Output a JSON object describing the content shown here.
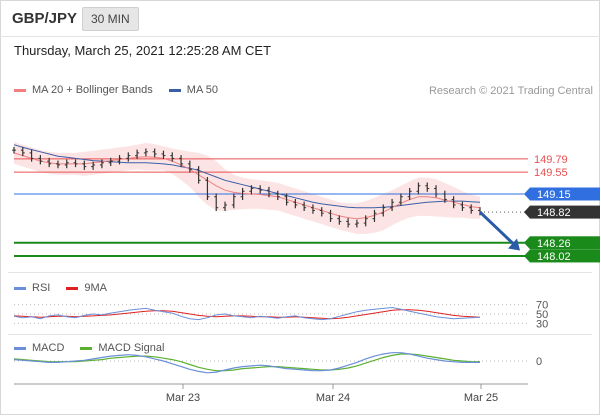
{
  "header": {
    "pair": "GBP/JPY",
    "timeframe": "30 MIN",
    "datetime": "Thursday, March 25, 2021 12:25:28 AM CET"
  },
  "legend_main": [
    {
      "label": "MA 20 + Bollinger Bands",
      "color": "#f08080"
    },
    {
      "label": "MA 50",
      "color": "#3a5fa8"
    }
  ],
  "credit": "Research © 2021 Trading Central",
  "legend_rsi": [
    {
      "label": "RSI",
      "color": "#6a8fd8"
    },
    {
      "label": "9MA",
      "color": "#e02020"
    }
  ],
  "legend_macd": [
    {
      "label": "MACD",
      "color": "#6a8fd8"
    },
    {
      "label": "MACD Signal",
      "color": "#5cb030"
    }
  ],
  "chart_data": {
    "type": "line",
    "pair": "GBP/JPY",
    "x_ticks": [
      "Mar 23",
      "Mar 24",
      "Mar 25"
    ],
    "ylim": [
      147.8,
      150.5
    ],
    "price_series": [
      149.95,
      149.9,
      149.8,
      149.75,
      149.7,
      149.68,
      149.72,
      149.7,
      149.65,
      149.68,
      149.72,
      149.75,
      149.8,
      149.85,
      149.9,
      149.92,
      149.88,
      149.85,
      149.8,
      149.7,
      149.6,
      149.4,
      149.1,
      148.9,
      148.95,
      149.1,
      149.2,
      149.25,
      149.22,
      149.15,
      149.1,
      149.0,
      148.95,
      148.9,
      148.85,
      148.8,
      148.7,
      148.65,
      148.6,
      148.62,
      148.7,
      148.8,
      148.9,
      149.0,
      149.1,
      149.2,
      149.3,
      149.25,
      149.15,
      149.05,
      148.95,
      148.9,
      148.85,
      148.82
    ],
    "ma20_series": [
      149.9,
      149.85,
      149.8,
      149.75,
      149.72,
      149.7,
      149.7,
      149.7,
      149.7,
      149.72,
      149.74,
      149.76,
      149.78,
      149.8,
      149.82,
      149.83,
      149.82,
      149.8,
      149.75,
      149.68,
      149.6,
      149.5,
      149.4,
      149.3,
      149.22,
      149.18,
      149.16,
      149.15,
      149.14,
      149.12,
      149.1,
      149.05,
      149.0,
      148.95,
      148.9,
      148.85,
      148.8,
      148.75,
      148.72,
      148.7,
      148.72,
      148.76,
      148.82,
      148.9,
      148.98,
      149.05,
      149.1,
      149.1,
      149.08,
      149.04,
      149.0,
      148.96,
      148.92,
      148.9
    ],
    "ma50_series": [
      150.05,
      150.0,
      149.96,
      149.92,
      149.88,
      149.84,
      149.82,
      149.8,
      149.78,
      149.76,
      149.75,
      149.74,
      149.73,
      149.72,
      149.72,
      149.72,
      149.71,
      149.7,
      149.68,
      149.65,
      149.62,
      149.58,
      149.52,
      149.46,
      149.4,
      149.36,
      149.32,
      149.28,
      149.24,
      149.2,
      149.16,
      149.12,
      149.08,
      149.04,
      149.0,
      148.97,
      148.95,
      148.93,
      148.91,
      148.9,
      148.9,
      148.9,
      148.91,
      148.92,
      148.94,
      148.96,
      148.98,
      149.0,
      149.01,
      149.02,
      149.02,
      149.02,
      149.01,
      149.0
    ],
    "bb_upper": [
      150.1,
      150.05,
      150.0,
      149.95,
      149.92,
      149.9,
      149.9,
      149.9,
      149.92,
      149.94,
      149.96,
      149.98,
      150.0,
      150.02,
      150.05,
      150.08,
      150.06,
      150.02,
      149.98,
      149.95,
      149.92,
      149.9,
      149.85,
      149.75,
      149.6,
      149.5,
      149.45,
      149.42,
      149.4,
      149.38,
      149.35,
      149.3,
      149.25,
      149.2,
      149.15,
      149.1,
      149.05,
      149.0,
      148.98,
      148.98,
      149.02,
      149.08,
      149.15,
      149.22,
      149.3,
      149.38,
      149.45,
      149.45,
      149.42,
      149.35,
      149.28,
      149.2,
      149.14,
      149.1
    ],
    "bb_lower": [
      149.7,
      149.65,
      149.6,
      149.55,
      149.52,
      149.5,
      149.5,
      149.5,
      149.48,
      149.5,
      149.52,
      149.54,
      149.56,
      149.58,
      149.6,
      149.58,
      149.58,
      149.58,
      149.52,
      149.4,
      149.28,
      149.1,
      148.95,
      148.85,
      148.84,
      148.86,
      148.87,
      148.88,
      148.88,
      148.86,
      148.85,
      148.8,
      148.75,
      148.7,
      148.65,
      148.6,
      148.55,
      148.5,
      148.46,
      148.42,
      148.42,
      148.44,
      148.49,
      148.58,
      148.66,
      148.72,
      148.75,
      148.75,
      148.74,
      148.73,
      148.72,
      148.72,
      148.7,
      148.7
    ],
    "levels": [
      {
        "value": 149.79,
        "label": "149.79",
        "kind": "resistance",
        "color": "#e85050"
      },
      {
        "value": 149.55,
        "label": "149.55",
        "kind": "resistance",
        "color": "#e85050"
      },
      {
        "value": 149.15,
        "label": "149.15",
        "kind": "pivot",
        "color": "#2f6fe0"
      },
      {
        "value": 148.82,
        "label": "148.82",
        "kind": "last",
        "color": "#333333"
      },
      {
        "value": 148.26,
        "label": "148.26",
        "kind": "support",
        "color": "#1a8a1a"
      },
      {
        "value": 148.02,
        "label": "148.02",
        "kind": "support",
        "color": "#1a8a1a"
      }
    ],
    "rsi": {
      "ylim": [
        20,
        80
      ],
      "ticks": [
        70,
        50,
        30
      ],
      "tick_labels": [
        "70",
        "50",
        "30"
      ],
      "rsi_series": [
        45,
        42,
        44,
        40,
        46,
        48,
        44,
        42,
        47,
        50,
        48,
        52,
        55,
        58,
        60,
        62,
        58,
        55,
        52,
        45,
        40,
        38,
        42,
        48,
        50,
        46,
        44,
        42,
        45,
        43,
        41,
        44,
        46,
        42,
        40,
        38,
        40,
        45,
        50,
        55,
        58,
        60,
        62,
        64,
        60,
        56,
        52,
        48,
        44,
        42,
        40,
        41,
        42,
        43
      ],
      "ma9_series": [
        46,
        45,
        44,
        43,
        44,
        45,
        45,
        44,
        45,
        46,
        47,
        48,
        50,
        52,
        54,
        56,
        57,
        57,
        56,
        53,
        50,
        47,
        45,
        44,
        45,
        46,
        46,
        45,
        44,
        44,
        43,
        43,
        44,
        43,
        42,
        41,
        40,
        41,
        43,
        46,
        49,
        52,
        55,
        58,
        59,
        59,
        58,
        56,
        53,
        50,
        47,
        45,
        44,
        43
      ]
    },
    "macd": {
      "ticks": [
        0
      ],
      "tick_labels": [
        "0"
      ],
      "macd_series": [
        0.02,
        0.01,
        0.0,
        -0.01,
        -0.02,
        -0.02,
        -0.01,
        0.0,
        0.01,
        0.03,
        0.05,
        0.07,
        0.08,
        0.09,
        0.08,
        0.06,
        0.03,
        0.0,
        -0.04,
        -0.08,
        -0.12,
        -0.15,
        -0.17,
        -0.16,
        -0.13,
        -0.1,
        -0.08,
        -0.07,
        -0.06,
        -0.07,
        -0.09,
        -0.11,
        -0.12,
        -0.13,
        -0.14,
        -0.14,
        -0.13,
        -0.1,
        -0.06,
        -0.02,
        0.03,
        0.07,
        0.1,
        0.12,
        0.12,
        0.1,
        0.07,
        0.04,
        0.02,
        0.0,
        -0.01,
        -0.02,
        -0.02,
        -0.02
      ],
      "signal_series": [
        0.03,
        0.02,
        0.01,
        0.0,
        -0.01,
        -0.01,
        -0.01,
        -0.01,
        0.0,
        0.01,
        0.02,
        0.04,
        0.05,
        0.06,
        0.07,
        0.07,
        0.06,
        0.04,
        0.02,
        -0.01,
        -0.05,
        -0.09,
        -0.12,
        -0.14,
        -0.14,
        -0.13,
        -0.11,
        -0.1,
        -0.09,
        -0.08,
        -0.08,
        -0.09,
        -0.1,
        -0.11,
        -0.12,
        -0.13,
        -0.13,
        -0.12,
        -0.1,
        -0.07,
        -0.03,
        0.01,
        0.05,
        0.08,
        0.1,
        0.1,
        0.09,
        0.07,
        0.05,
        0.03,
        0.01,
        0.0,
        -0.01,
        -0.01
      ]
    }
  }
}
